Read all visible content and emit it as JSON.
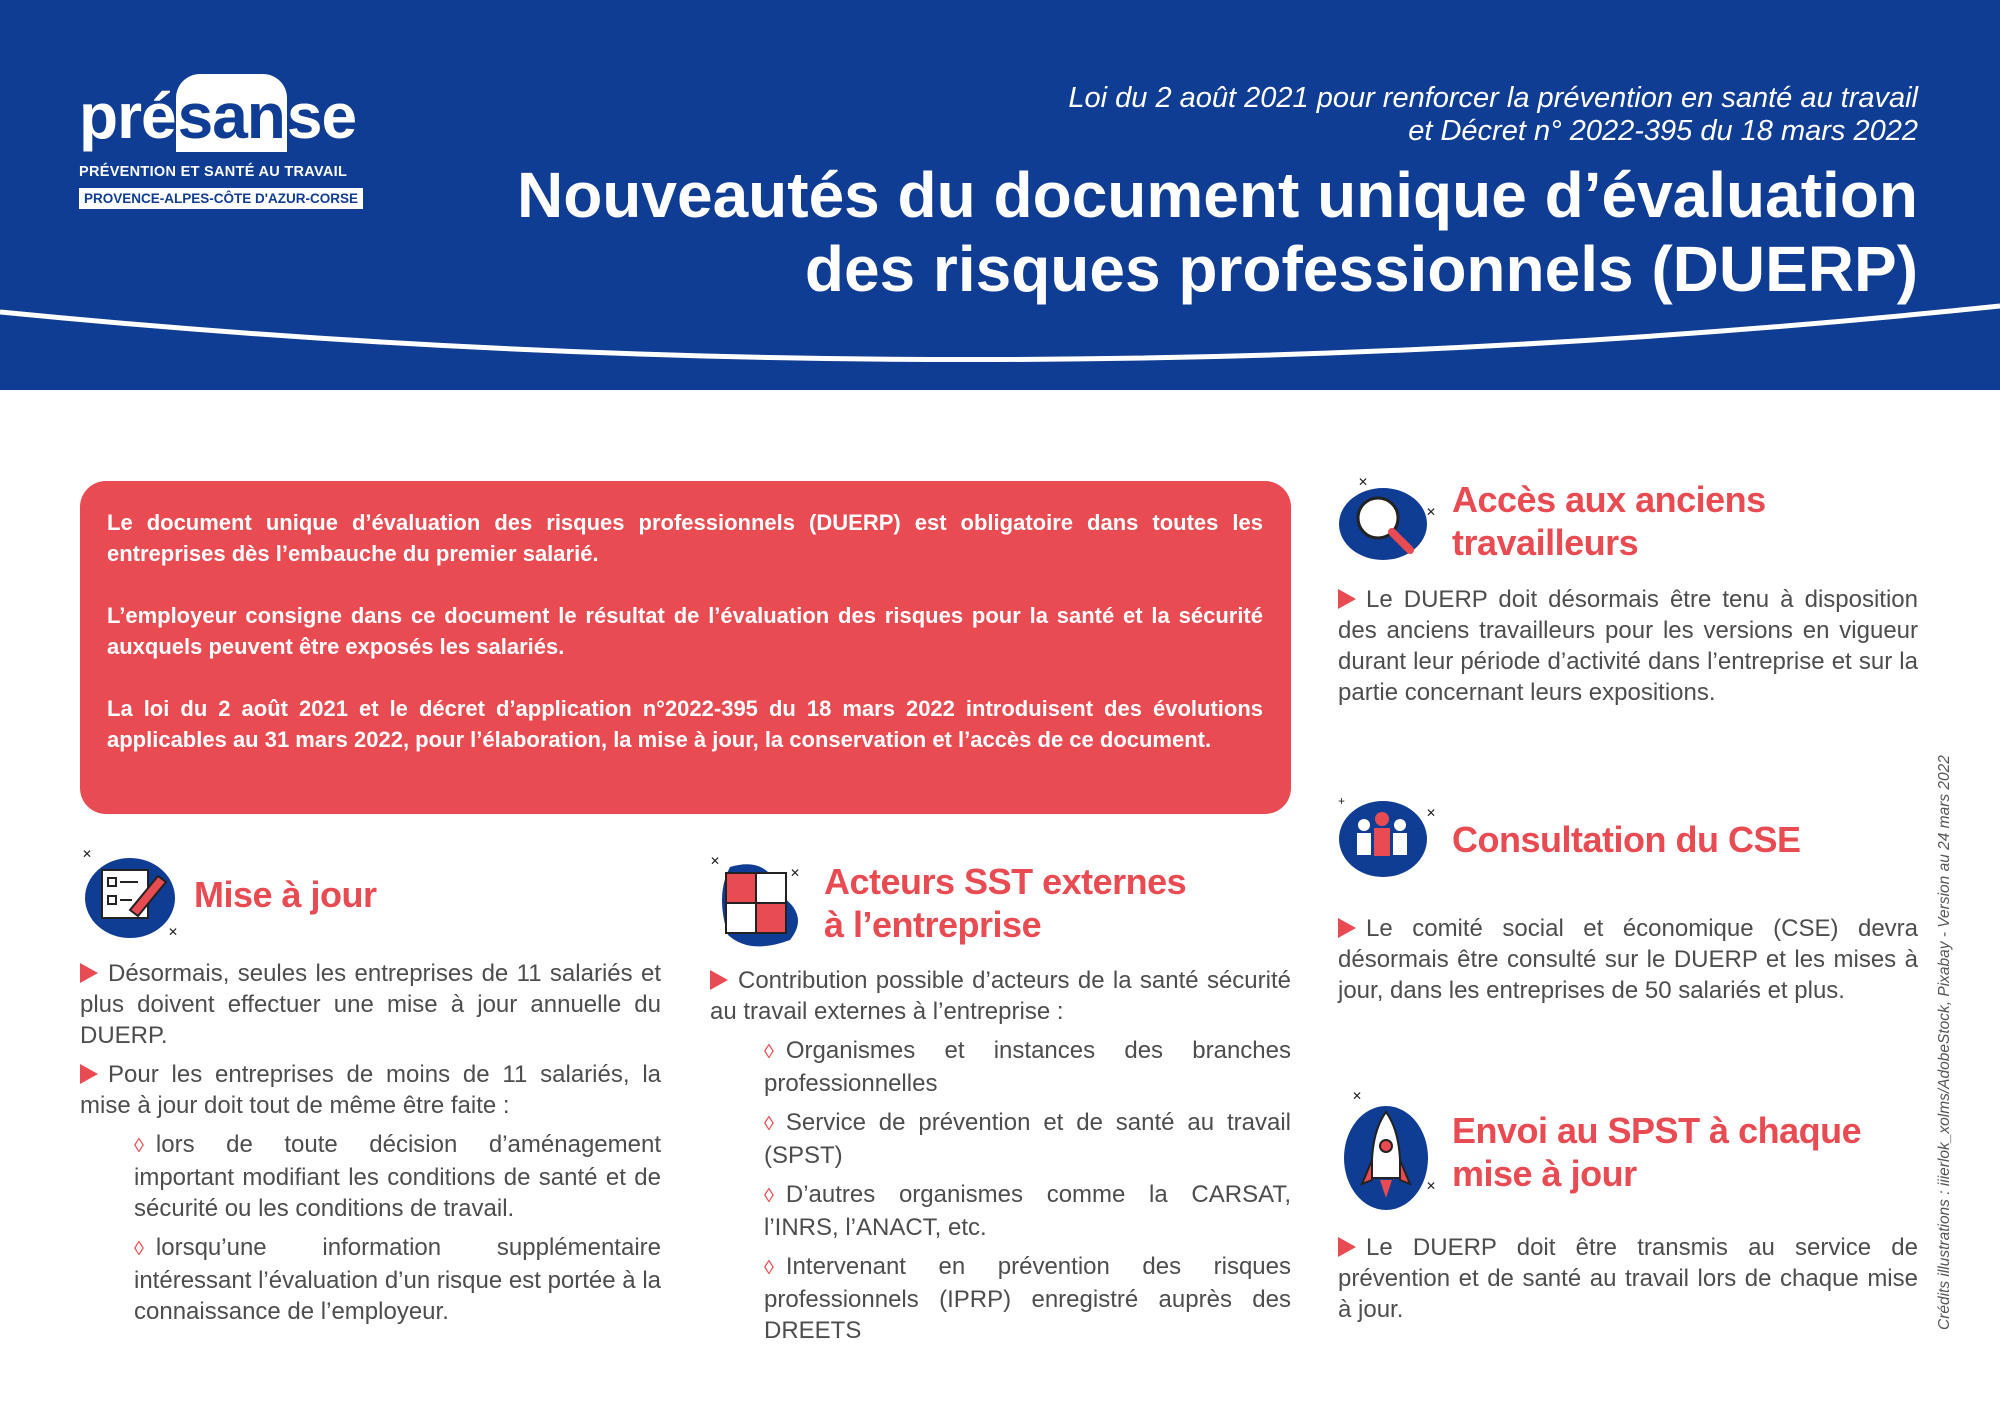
{
  "colors": {
    "brand_blue": "#0f3d93",
    "accent_red": "#e84b51"
  },
  "logo": {
    "word_pre": "pré",
    "word_hl": "san",
    "word_post": "se",
    "tagline": "PRÉVENTION ET SANTÉ AU TRAVAIL",
    "region": "PROVENCE-ALPES-CÔTE D'AZUR-CORSE"
  },
  "header": {
    "subtitle": [
      "Loi du 2 août 2021 pour renforcer la prévention en santé au travail",
      "et Décret n° 2022-395 du 18 mars 2022"
    ],
    "title": [
      "Nouveautés du document unique d’évaluation",
      "des risques professionnels (DUERP)"
    ]
  },
  "intro": [
    "Le document unique d’évaluation des risques professionnels (DUERP) est obligatoire dans toutes les entreprises dès l’embauche du premier salarié.",
    "L’employeur consigne dans ce document le résultat de l’évaluation des risques pour la santé et la sécurité auxquels peuvent être exposés les salariés.",
    "La loi du 2 août 2021 et le décret d’application  n°2022-395 du 18 mars 2022 introduisent des évolutions applicables au 31 mars 2022, pour l’élaboration, la mise à jour, la conservation et l’accès de ce document."
  ],
  "mise_a_jour": {
    "icon": "checklist-pencil-icon",
    "title": "Mise à jour",
    "bullets": [
      "Désormais, seules les entreprises de 11 salariés et plus doivent effectuer une mise à jour annuelle du DUERP.",
      "Pour les entreprises de moins de 11 salariés, la mise à jour doit tout de même être faite :"
    ],
    "sub": [
      "lors de toute décision d’aménagement important modifiant les conditions de santé et de sécurité ou les conditions de travail.",
      "lorsqu’une information supplémentaire intéressant l’évaluation d’un risque est portée à la connaissance de l’employeur."
    ]
  },
  "acteurs": {
    "icon": "puzzle-icon",
    "title": [
      "Acteurs SST externes",
      "à l’entreprise"
    ],
    "bullet": "Contribution possible d’acteurs de la santé sécurité au travail externes à l’entreprise :",
    "sub": [
      "Organismes et instances des branches professionnelles",
      "Service de prévention et de santé au travail (SPST)",
      "D’autres organismes comme la CARSAT, l’INRS, l’ANACT, etc.",
      "Intervenant en prévention des risques professionnels (IPRP) enregistré auprès des DREETS"
    ]
  },
  "acces": {
    "icon": "magnifier-icon",
    "title": [
      "Accès aux anciens",
      "travailleurs"
    ],
    "bullet": "Le DUERP doit désormais être tenu à disposition des anciens travailleurs pour les versions en vigueur durant leur période d’activité dans l’entreprise et sur la partie concernant leurs expositions."
  },
  "cse": {
    "icon": "people-group-icon",
    "title": "Consultation du CSE",
    "bullet": "Le comité social et économique (CSE) devra désormais être consulté sur le DUERP et les mises à jour, dans les entreprises de 50 salariés et plus."
  },
  "envoi": {
    "icon": "rocket-icon",
    "title": [
      "Envoi au SPST à chaque",
      "mise à jour"
    ],
    "bullet": "Le DUERP doit être transmis au service de prévention et de santé au travail lors de chaque mise à jour."
  },
  "credits": "Crédits illustrations : iiierlok_xolms/AdobeStock, Pixabay - Version au 24 mars 2022"
}
